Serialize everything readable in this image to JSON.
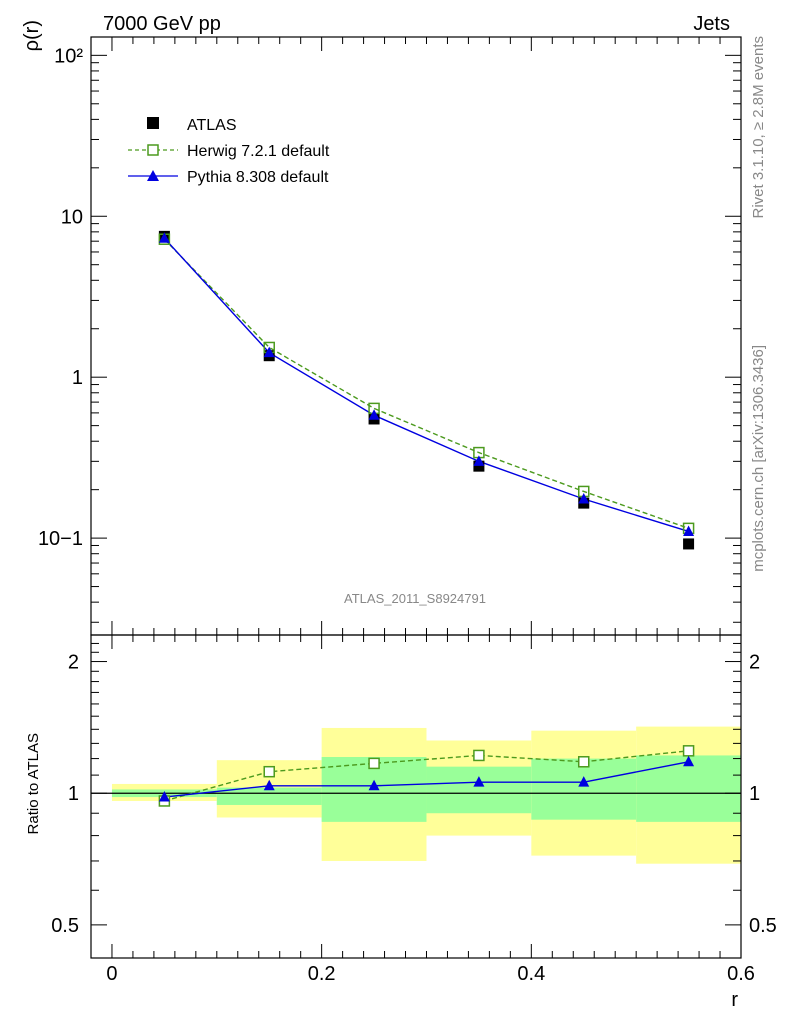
{
  "header": {
    "left": "7000 GeV pp",
    "right": "Jets"
  },
  "side_labels": {
    "rivet": "Rivet 3.1.10, ≥ 2.8M events",
    "mcplots": "mcplots.cern.ch [arXiv:1306.3436]"
  },
  "analysis_id": "ATLAS_2011_S8924791",
  "chart_data": [
    {
      "type": "scatter",
      "panel": "main",
      "ylabel": "ρ(r)",
      "yscale": "log",
      "ylim": [
        0.025,
        130
      ],
      "xlim": [
        -0.02,
        0.6
      ],
      "ytick_labels": [
        "10−1",
        "1",
        "10",
        "10²"
      ],
      "legend_position": "top-left",
      "series": [
        {
          "name": "ATLAS",
          "style": "black-square-marker",
          "color": "#000000",
          "x": [
            0.05,
            0.15,
            0.25,
            0.35,
            0.45,
            0.55
          ],
          "y": [
            7.5,
            1.36,
            0.55,
            0.28,
            0.165,
            0.092
          ]
        },
        {
          "name": "Herwig 7.2.1 default",
          "style": "dashed-open-square",
          "color": "#4c9a1e",
          "x": [
            0.05,
            0.15,
            0.25,
            0.35,
            0.45,
            0.55
          ],
          "y": [
            7.2,
            1.53,
            0.64,
            0.34,
            0.195,
            0.115
          ]
        },
        {
          "name": "Pythia 8.308 default",
          "style": "solid-filled-triangle",
          "color": "#0000e0",
          "x": [
            0.05,
            0.15,
            0.25,
            0.35,
            0.45,
            0.55
          ],
          "y": [
            7.3,
            1.42,
            0.58,
            0.3,
            0.175,
            0.11
          ]
        }
      ]
    },
    {
      "type": "line",
      "panel": "ratio",
      "xlabel": "r",
      "ylabel": "Ratio to ATLAS",
      "ylim": [
        0.42,
        2.3
      ],
      "xlim": [
        -0.02,
        0.6
      ],
      "xtick_labels": [
        "0",
        "0.2",
        "0.4",
        "0.6"
      ],
      "ytick_labels": [
        "0.5",
        "1",
        "2"
      ],
      "bands": {
        "x_edges": [
          0.0,
          0.1,
          0.2,
          0.3,
          0.4,
          0.5,
          0.6
        ],
        "stat_color": "#99ff99",
        "total_color": "#ffff99",
        "stat_low": [
          0.98,
          0.94,
          0.86,
          0.9,
          0.87,
          0.86
        ],
        "stat_high": [
          1.02,
          1.03,
          1.21,
          1.15,
          1.2,
          1.22
        ],
        "total_low": [
          0.96,
          0.88,
          0.7,
          0.8,
          0.72,
          0.69
        ],
        "total_high": [
          1.05,
          1.19,
          1.41,
          1.32,
          1.39,
          1.42
        ]
      },
      "reference_line": 1,
      "series": [
        {
          "name": "Herwig 7.2.1 default",
          "color": "#4c9a1e",
          "x": [
            0.05,
            0.15,
            0.25,
            0.35,
            0.45,
            0.55
          ],
          "y": [
            0.96,
            1.12,
            1.17,
            1.22,
            1.18,
            1.25
          ]
        },
        {
          "name": "Pythia 8.308 default",
          "color": "#0000e0",
          "x": [
            0.05,
            0.15,
            0.25,
            0.35,
            0.45,
            0.55
          ],
          "y": [
            0.98,
            1.04,
            1.04,
            1.06,
            1.06,
            1.18
          ]
        }
      ]
    }
  ]
}
